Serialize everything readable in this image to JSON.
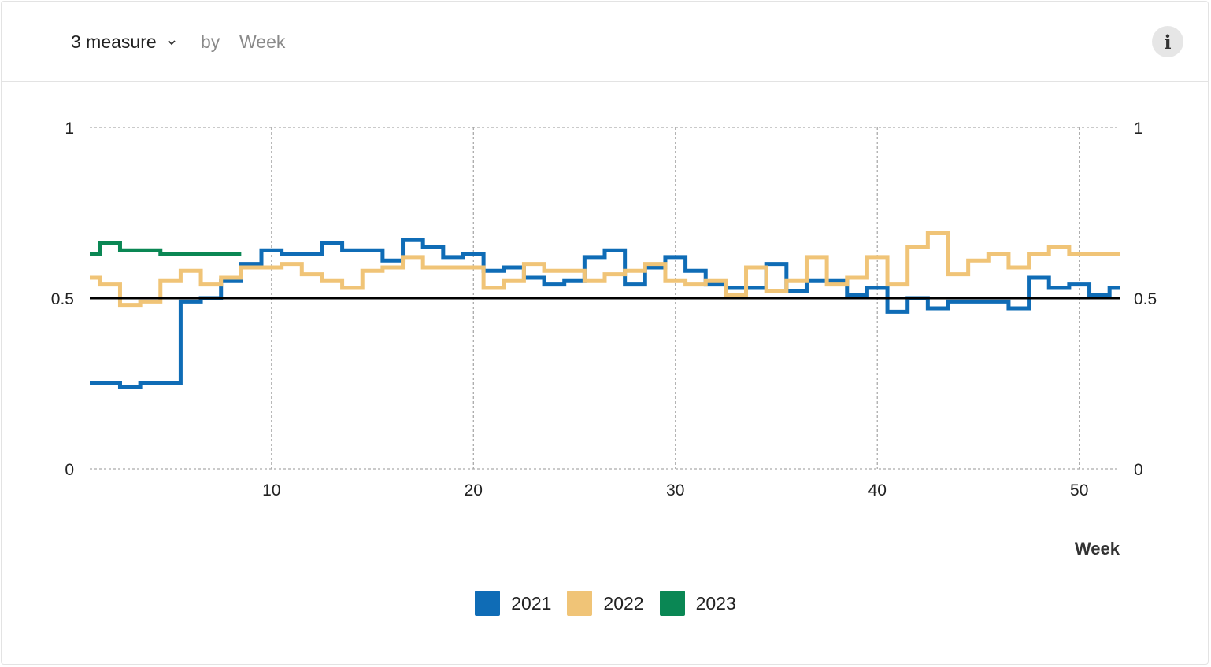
{
  "header": {
    "measure_label": "3 measure",
    "by_label": "by",
    "dimension_label": "Week",
    "info_label": "i"
  },
  "chart_data": {
    "type": "line",
    "step": true,
    "xlabel": "Week",
    "ylabel": "",
    "xlim": [
      1,
      52
    ],
    "ylim": [
      0,
      1
    ],
    "x_ticks": [
      10,
      20,
      30,
      40,
      50
    ],
    "y_ticks": [
      0,
      0.5,
      1
    ],
    "y_tick_labels": [
      "0",
      "0.5",
      "1"
    ],
    "reference_line": 0.5,
    "grid": true,
    "legend_position": "bottom",
    "series": [
      {
        "name": "2021",
        "color": "#0f6cb6",
        "x": [
          1,
          2,
          3,
          4,
          5,
          6,
          7,
          8,
          9,
          10,
          11,
          12,
          13,
          14,
          15,
          16,
          17,
          18,
          19,
          20,
          21,
          22,
          23,
          24,
          25,
          26,
          27,
          28,
          29,
          30,
          31,
          32,
          33,
          34,
          35,
          36,
          37,
          38,
          39,
          40,
          41,
          42,
          43,
          44,
          45,
          46,
          47,
          48,
          49,
          50,
          51,
          52
        ],
        "values": [
          0.25,
          0.25,
          0.24,
          0.25,
          0.25,
          0.49,
          0.5,
          0.55,
          0.6,
          0.64,
          0.63,
          0.63,
          0.66,
          0.64,
          0.64,
          0.61,
          0.67,
          0.65,
          0.62,
          0.63,
          0.58,
          0.59,
          0.56,
          0.54,
          0.55,
          0.62,
          0.64,
          0.54,
          0.59,
          0.62,
          0.58,
          0.54,
          0.53,
          0.53,
          0.6,
          0.52,
          0.55,
          0.55,
          0.51,
          0.53,
          0.46,
          0.5,
          0.47,
          0.49,
          0.49,
          0.49,
          0.47,
          0.56,
          0.53,
          0.54,
          0.51,
          0.53
        ]
      },
      {
        "name": "2022",
        "color": "#f0c477",
        "x": [
          1,
          2,
          3,
          4,
          5,
          6,
          7,
          8,
          9,
          10,
          11,
          12,
          13,
          14,
          15,
          16,
          17,
          18,
          19,
          20,
          21,
          22,
          23,
          24,
          25,
          26,
          27,
          28,
          29,
          30,
          31,
          32,
          33,
          34,
          35,
          36,
          37,
          38,
          39,
          40,
          41,
          42,
          43,
          44,
          45,
          46,
          47,
          48,
          49,
          50,
          51,
          52
        ],
        "values": [
          0.56,
          0.54,
          0.48,
          0.49,
          0.55,
          0.58,
          0.54,
          0.56,
          0.59,
          0.59,
          0.6,
          0.57,
          0.55,
          0.53,
          0.58,
          0.59,
          0.62,
          0.59,
          0.59,
          0.59,
          0.53,
          0.55,
          0.6,
          0.58,
          0.58,
          0.55,
          0.57,
          0.58,
          0.6,
          0.55,
          0.54,
          0.55,
          0.51,
          0.59,
          0.52,
          0.55,
          0.62,
          0.54,
          0.56,
          0.62,
          0.54,
          0.65,
          0.69,
          0.57,
          0.61,
          0.63,
          0.59,
          0.63,
          0.65,
          0.63,
          0.63,
          0.63
        ]
      },
      {
        "name": "2023",
        "color": "#0a8754",
        "x": [
          1,
          2,
          3,
          4,
          5,
          6,
          7,
          8
        ],
        "values": [
          0.63,
          0.66,
          0.64,
          0.64,
          0.63,
          0.63,
          0.63,
          0.63
        ]
      }
    ]
  }
}
